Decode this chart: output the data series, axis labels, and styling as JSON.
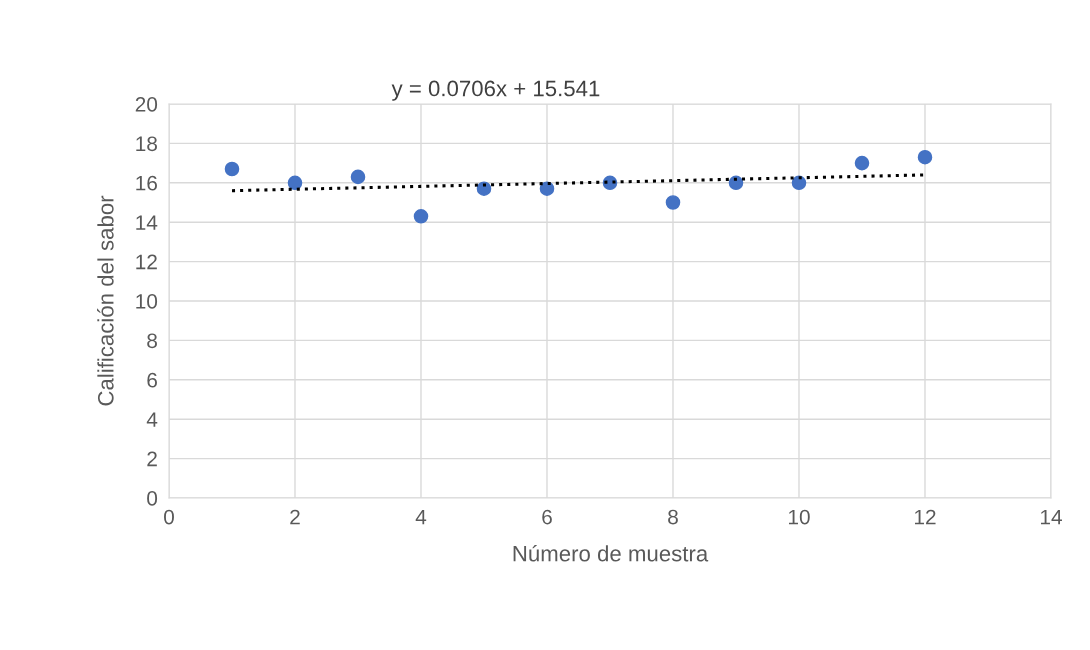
{
  "chart_data": {
    "type": "scatter",
    "xlabel": "Número de muestra",
    "ylabel": "Calificación del sabor",
    "annotations": [
      "y = 0.0706x + 15.541"
    ],
    "xlim": [
      0,
      14
    ],
    "xticks": [
      0,
      2,
      4,
      6,
      8,
      10,
      12,
      14
    ],
    "ylim": [
      0,
      20
    ],
    "yticks": [
      0,
      2,
      4,
      6,
      8,
      10,
      12,
      14,
      16,
      18,
      20
    ],
    "grid": true,
    "marker": "circle",
    "x": [
      1,
      2,
      3,
      4,
      5,
      6,
      7,
      8,
      9,
      10,
      11,
      12
    ],
    "series": [
      {
        "color": "#4472c4",
        "values": [
          16.7,
          16.0,
          16.3,
          14.3,
          15.7,
          15.7,
          16.0,
          15.0,
          16.0,
          16.0,
          17.0,
          17.3
        ]
      },
      {
        "type": "line",
        "color": "#000000",
        "line_style": "dotted",
        "marker": "none",
        "x": [
          1,
          12
        ],
        "values": [
          15.6,
          16.4
        ]
      }
    ]
  }
}
